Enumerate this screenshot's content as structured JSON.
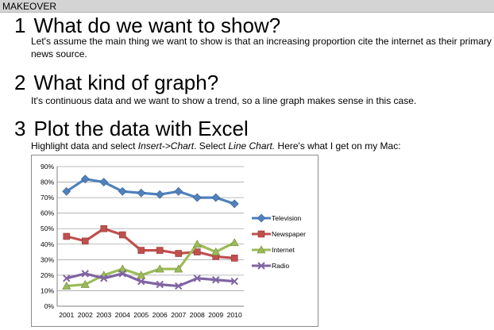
{
  "header": {
    "label": "MAKEOVER"
  },
  "sections": [
    {
      "number": "1",
      "title": "What do we want to show?",
      "body": "Let's assume the main thing we want to show is that an increasing proportion cite the internet as their primary news source."
    },
    {
      "number": "2",
      "title": "What kind of graph?",
      "body": "It's continuous data and we want to show a trend, so a line graph makes sense in this case."
    },
    {
      "number": "3",
      "title": "Plot the data with Excel",
      "body_parts": [
        "Highlight data and select ",
        "Insert->Chart",
        ". Select ",
        "Line Chart.",
        " Here's what I get on my Mac:"
      ]
    }
  ],
  "chart_data": {
    "type": "line",
    "title": "",
    "xlabel": "",
    "ylabel": "",
    "ylim": [
      0,
      90
    ],
    "yticks": [
      "0%",
      "10%",
      "20%",
      "30%",
      "40%",
      "50%",
      "60%",
      "70%",
      "80%",
      "90%"
    ],
    "categories": [
      "2001",
      "2002",
      "2003",
      "2004",
      "2005",
      "2006",
      "2007",
      "2008",
      "2009",
      "2010"
    ],
    "grid": true,
    "legend": "right",
    "series": [
      {
        "name": "Television",
        "color": "#4f81bd",
        "marker": "diamond",
        "values": [
          74,
          82,
          80,
          74,
          73,
          72,
          74,
          70,
          70,
          66
        ]
      },
      {
        "name": "Newspaper",
        "color": "#c0504d",
        "marker": "square",
        "values": [
          45,
          42,
          50,
          46,
          36,
          36,
          34,
          35,
          32,
          31
        ]
      },
      {
        "name": "Internet",
        "color": "#9bbb59",
        "marker": "triangle",
        "values": [
          13,
          14,
          20,
          24,
          20,
          24,
          24,
          40,
          35,
          41
        ]
      },
      {
        "name": "Radio",
        "color": "#8064a2",
        "marker": "x",
        "values": [
          18,
          21,
          18,
          21,
          16,
          14,
          13,
          18,
          17,
          16
        ]
      }
    ]
  }
}
